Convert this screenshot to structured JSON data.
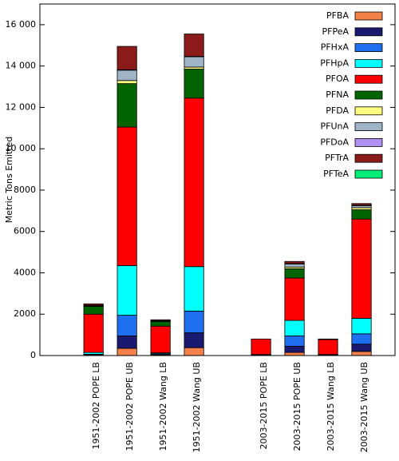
{
  "chart_data": {
    "type": "bar",
    "stacked": true,
    "y_label": "Metric Tons Emitted",
    "categories": [
      "1951-2002 POPE LB",
      "1951-2002 POPE UB",
      "1951-2002 Wang LB",
      "1951-2002 Wang UB",
      null,
      "2003-2015 POPE LB",
      "2003-2015 POPE UB",
      "2003-2015 Wang LB",
      "2003-2015 Wang UB"
    ],
    "series": [
      {
        "name": "PFBA",
        "color": "#f4804a",
        "values": [
          20,
          350,
          30,
          380,
          null,
          20,
          150,
          20,
          200
        ]
      },
      {
        "name": "PFPeA",
        "color": "#191970",
        "values": [
          10,
          600,
          20,
          720,
          null,
          10,
          300,
          10,
          350
        ]
      },
      {
        "name": "PFHxA",
        "color": "#1e6ef0",
        "values": [
          30,
          1000,
          40,
          1050,
          null,
          10,
          500,
          10,
          500
        ]
      },
      {
        "name": "PFHpA",
        "color": "#00ffff",
        "values": [
          90,
          2400,
          40,
          2150,
          null,
          10,
          750,
          10,
          750
        ]
      },
      {
        "name": "PFOA",
        "color": "#ff0000",
        "values": [
          1850,
          6700,
          1290,
          8150,
          null,
          750,
          2050,
          720,
          4800
        ]
      },
      {
        "name": "PFNA",
        "color": "#006400",
        "values": [
          380,
          2100,
          220,
          1400,
          null,
          0,
          450,
          30,
          450
        ]
      },
      {
        "name": "PFDA",
        "color": "#ffff80",
        "values": [
          20,
          150,
          20,
          100,
          null,
          0,
          80,
          0,
          100
        ]
      },
      {
        "name": "PFUnA",
        "color": "#a0b4c8",
        "values": [
          30,
          500,
          30,
          500,
          null,
          0,
          150,
          0,
          100
        ]
      },
      {
        "name": "PFDoA",
        "color": "#b090f0",
        "values": [
          0,
          20,
          0,
          20,
          null,
          0,
          20,
          0,
          20
        ]
      },
      {
        "name": "PFTrA",
        "color": "#8b1a1a",
        "values": [
          70,
          1130,
          40,
          1080,
          null,
          0,
          100,
          0,
          80
        ]
      },
      {
        "name": "PFTeA",
        "color": "#00ee77",
        "values": [
          0,
          0,
          0,
          0,
          null,
          0,
          0,
          0,
          0
        ]
      }
    ],
    "ylim": [
      0,
      17000
    ],
    "yticks": [
      0,
      2000,
      4000,
      6000,
      8000,
      {
        "value": 10000,
        "label": "10 000"
      },
      {
        "value": 12000,
        "label": "12 000"
      },
      {
        "value": 14000,
        "label": "14 000"
      },
      {
        "value": 16000,
        "label": "16 000"
      }
    ],
    "legend": "upper right"
  }
}
